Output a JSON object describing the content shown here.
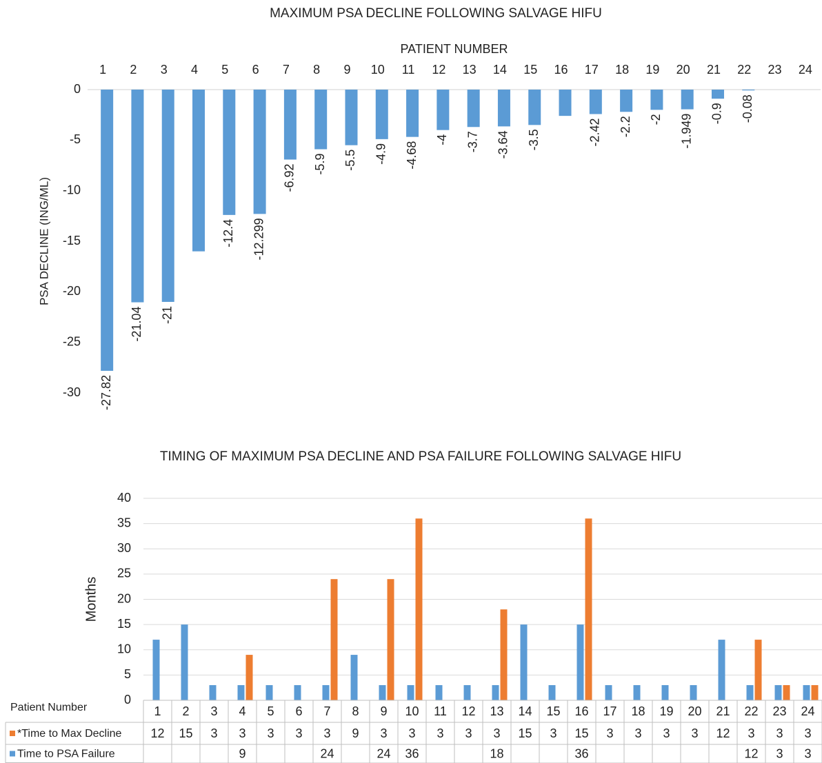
{
  "chart_data": [
    {
      "type": "bar",
      "title": "MAXIMUM PSA DECLINE FOLLOWING SALVAGE HIFU",
      "x_label": "PATIENT NUMBER",
      "y_label": "PSA DECLINE (ING/ML)",
      "xaxis_position": "top",
      "categories": [
        "1",
        "2",
        "3",
        "4",
        "5",
        "6",
        "7",
        "8",
        "9",
        "10",
        "11",
        "12",
        "13",
        "14",
        "15",
        "16",
        "17",
        "18",
        "19",
        "20",
        "21",
        "22",
        "23",
        "24"
      ],
      "values": [
        -27.82,
        -21.04,
        -21,
        -16,
        -12.4,
        -12.299,
        -6.92,
        -5.9,
        -5.5,
        -4.9,
        -4.68,
        -4,
        -3.7,
        -3.64,
        -3.5,
        -2.6,
        -2.42,
        -2.2,
        -2,
        -1.949,
        -0.9,
        -0.08,
        null,
        null
      ],
      "value_labels": [
        "-27.82",
        "-21.04",
        "-21",
        null,
        "-12.4",
        "-12.299",
        "-6.92",
        "-5.9",
        "-5.5",
        "-4.9",
        "-4.68",
        "-4",
        "-3.7",
        "-3.64",
        "-3.5",
        null,
        "-2.42",
        "-2.2",
        "-2",
        "-1.949",
        "-0.9",
        "-0.08",
        null,
        null
      ],
      "color": "#5b9bd5",
      "ylim": [
        -30,
        0
      ],
      "yticks": [
        0,
        -5,
        -10,
        -15,
        -20,
        -25,
        -30
      ],
      "grid": false
    },
    {
      "type": "bar",
      "title": "TIMING OF MAXIMUM PSA DECLINE AND PSA FAILURE FOLLOWING SALVAGE HIFU",
      "y_label": "Months",
      "table_header": "Patient Number",
      "data_table": true,
      "categories": [
        "1",
        "2",
        "3",
        "4",
        "5",
        "6",
        "7",
        "8",
        "9",
        "10",
        "11",
        "12",
        "13",
        "14",
        "15",
        "16",
        "17",
        "18",
        "19",
        "20",
        "21",
        "22",
        "23",
        "24"
      ],
      "series": [
        {
          "name": "*Time to Max Decline",
          "color": "#5b9bd5",
          "swatch_color": "#ed7d31",
          "values": [
            12,
            15,
            3,
            3,
            3,
            3,
            3,
            9,
            3,
            3,
            3,
            3,
            3,
            15,
            3,
            15,
            3,
            3,
            3,
            3,
            12,
            3,
            3,
            3
          ]
        },
        {
          "name": "Time to PSA Failure",
          "color": "#ed7d31",
          "swatch_color": "#5b9bd5",
          "values": [
            null,
            null,
            null,
            9,
            null,
            null,
            24,
            null,
            24,
            36,
            null,
            null,
            18,
            null,
            null,
            36,
            null,
            null,
            null,
            null,
            null,
            12,
            3,
            3
          ]
        }
      ],
      "ylim": [
        0,
        40
      ],
      "yticks": [
        0,
        5,
        10,
        15,
        20,
        25,
        30,
        35,
        40
      ],
      "grid": true
    }
  ]
}
